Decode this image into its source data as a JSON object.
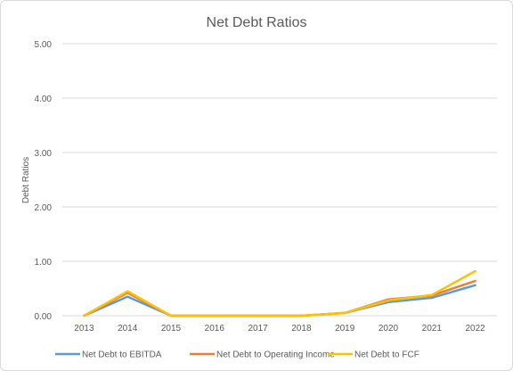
{
  "chart_data": {
    "type": "line",
    "title": "Net Debt Ratios",
    "xlabel": "",
    "ylabel": "Debt Ratios",
    "x": [
      "2013",
      "2014",
      "2015",
      "2016",
      "2017",
      "2018",
      "2019",
      "2020",
      "2021",
      "2022"
    ],
    "ylim": [
      0,
      5
    ],
    "yticks": [
      "0.00",
      "1.00",
      "2.00",
      "3.00",
      "4.00",
      "5.00"
    ],
    "grid": true,
    "legend": "bottom",
    "series": [
      {
        "name": "Net Debt to EBITDA",
        "color": "#5b9bd5",
        "values": [
          null,
          0.35,
          null,
          null,
          null,
          null,
          0.05,
          0.25,
          0.33,
          0.56
        ]
      },
      {
        "name": "Net Debt to Operating Income",
        "color": "#ed7d31",
        "values": [
          null,
          0.42,
          null,
          null,
          null,
          null,
          0.05,
          0.3,
          0.37,
          0.64
        ]
      },
      {
        "name": "Net Debt to FCF",
        "color": "#ffc000",
        "values": [
          null,
          0.45,
          null,
          null,
          null,
          null,
          0.05,
          0.28,
          0.38,
          0.82
        ]
      }
    ]
  }
}
